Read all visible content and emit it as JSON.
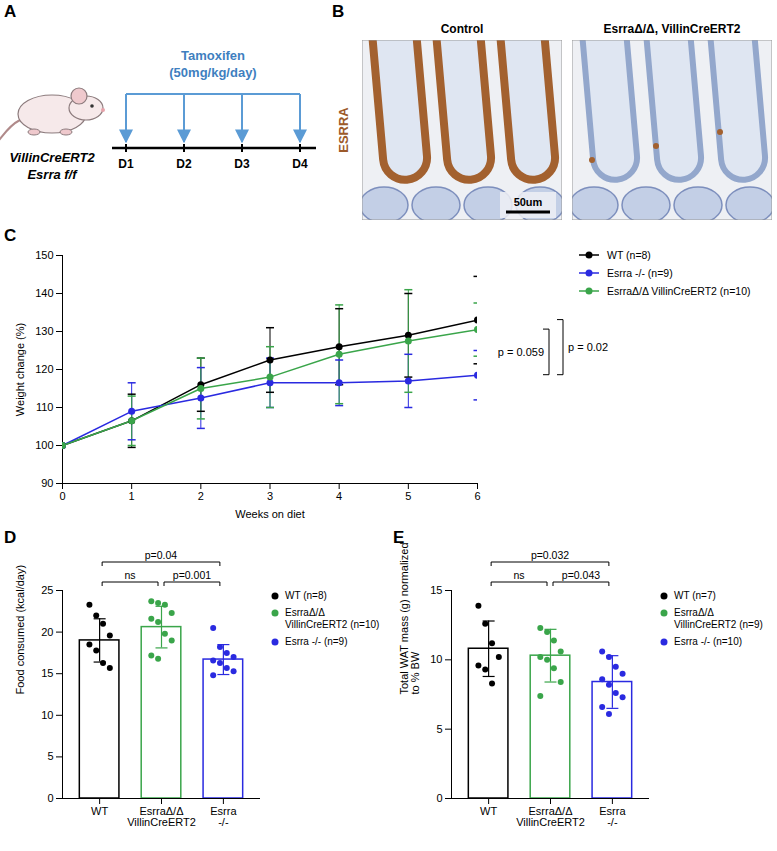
{
  "schematic": {
    "panel": "A",
    "mouse_label": [
      "VillinCreERT2",
      "Esrra f/f"
    ],
    "treatment": "Tamoxifen (50mg/kg/day)",
    "days": [
      "D1",
      "D2",
      "D3",
      "D4"
    ]
  },
  "histology": {
    "panel": "B",
    "stain": "ESRRA",
    "images": [
      "Control",
      "EsrraΔ/Δ, VillinCreERT2"
    ],
    "scale_bar": "50um"
  },
  "chart_data": [
    {
      "panel": "C",
      "type": "line",
      "x_label": "Weeks on diet",
      "y_label": "Weight change (%)",
      "x": [
        0,
        1,
        2,
        3,
        4,
        5,
        6
      ],
      "xlim": [
        0,
        6
      ],
      "xticks": [
        0,
        1,
        2,
        3,
        4,
        5,
        6
      ],
      "ylim": [
        90,
        150
      ],
      "yticks": [
        90,
        100,
        110,
        120,
        130,
        140,
        150
      ],
      "marker": "circle",
      "legend": "right",
      "series": [
        {
          "name": "WT (n=8)",
          "color": "#000000",
          "values": [
            100,
            106.5,
            116,
            122.5,
            126,
            129,
            133
          ],
          "error": [
            0,
            7,
            7,
            8.5,
            10,
            11,
            11.5
          ]
        },
        {
          "name": "Esrra -/- (n=9)",
          "color": "#2a2ae0",
          "values": [
            100,
            109,
            112.5,
            116.5,
            116.5,
            117,
            118.5
          ],
          "error": [
            0,
            7.5,
            8,
            6.5,
            6,
            7,
            6.5
          ]
        },
        {
          "name": "EsrraΔ/Δ VillinCreERT2 (n=10)",
          "color": "#3aa54a",
          "values": [
            100,
            106.5,
            115,
            118,
            124,
            127.5,
            130.5
          ],
          "error": [
            0,
            6.5,
            8,
            8,
            13,
            13.5,
            7
          ]
        }
      ],
      "annotations": [
        {
          "text": "p = 0.059",
          "between": [
            "EsrraΔ/Δ VillinCreERT2 (n=10)",
            "Esrra -/- (n=9)"
          ]
        },
        {
          "text": "p = 0.02",
          "between": [
            "WT (n=8)",
            "Esrra -/- (n=9)"
          ]
        }
      ]
    },
    {
      "panel": "D",
      "type": "bar",
      "y_label": "Food consumed (kcal/day)",
      "categories": [
        "WT",
        "EsrraΔ/Δ VillinCreERT2",
        "Esrra -/-"
      ],
      "values": [
        19,
        20.6,
        16.7
      ],
      "error": [
        2.6,
        2.5,
        1.8
      ],
      "colors": [
        "#000000",
        "#3aa54a",
        "#2a2ae0"
      ],
      "points": [
        [
          23.3,
          22,
          21,
          19.6,
          18.5,
          17.8,
          16.3,
          15.7
        ],
        [
          23.7,
          23.5,
          23.3,
          22.3,
          21.6,
          21.2,
          19.8,
          19,
          17.2,
          16.8
        ],
        [
          20.5,
          18.2,
          17.5,
          17,
          16.6,
          16.3,
          15.7,
          15.3,
          14.8
        ]
      ],
      "ylim": [
        0,
        25
      ],
      "yticks": [
        0,
        5,
        10,
        15,
        20,
        25
      ],
      "legend": "right",
      "legend_labels": [
        "WT (n=8)",
        "EsrraΔ/Δ VillinCreERT2 (n=10)",
        "Esrra -/- (n=9)"
      ],
      "comparisons": [
        {
          "text": "p=0.04",
          "between": [
            "WT",
            "Esrra -/-"
          ]
        },
        {
          "text": "ns",
          "between": [
            "WT",
            "EsrraΔ/Δ VillinCreERT2"
          ]
        },
        {
          "text": "p=0.001",
          "between": [
            "EsrraΔ/Δ VillinCreERT2",
            "Esrra -/-"
          ]
        }
      ]
    },
    {
      "panel": "E",
      "type": "bar",
      "y_label": "Total WAT mass (g) normalized to % BW",
      "categories": [
        "WT",
        "EsrraΔ/Δ VillinCreERT2",
        "Esrra -/-"
      ],
      "values": [
        10.8,
        10.3,
        8.4
      ],
      "error": [
        2.0,
        1.9,
        1.9
      ],
      "colors": [
        "#000000",
        "#3aa54a",
        "#2a2ae0"
      ],
      "points": [
        [
          13.9,
          12.6,
          11.2,
          10.2,
          9.6,
          9.3,
          8.3
        ],
        [
          12.3,
          12,
          11.4,
          10.6,
          10.2,
          10,
          9.4,
          8.4,
          7.4
        ],
        [
          10.6,
          10.2,
          9.5,
          9,
          8.6,
          8.2,
          7.6,
          7.3,
          6.6,
          6.1
        ]
      ],
      "ylim": [
        0,
        15
      ],
      "yticks": [
        0,
        5,
        10,
        15
      ],
      "legend": "right",
      "legend_labels": [
        "WT (n=7)",
        "EsrraΔ/Δ VillinCreERT2 (n=9)",
        "Esrra -/- (n=10)"
      ],
      "comparisons": [
        {
          "text": "p=0.032",
          "between": [
            "WT",
            "Esrra -/-"
          ]
        },
        {
          "text": "ns",
          "between": [
            "WT",
            "EsrraΔ/Δ VillinCreERT2"
          ]
        },
        {
          "text": "p=0.043",
          "between": [
            "EsrraΔ/Δ VillinCreERT2",
            "Esrra -/-"
          ]
        }
      ]
    }
  ]
}
